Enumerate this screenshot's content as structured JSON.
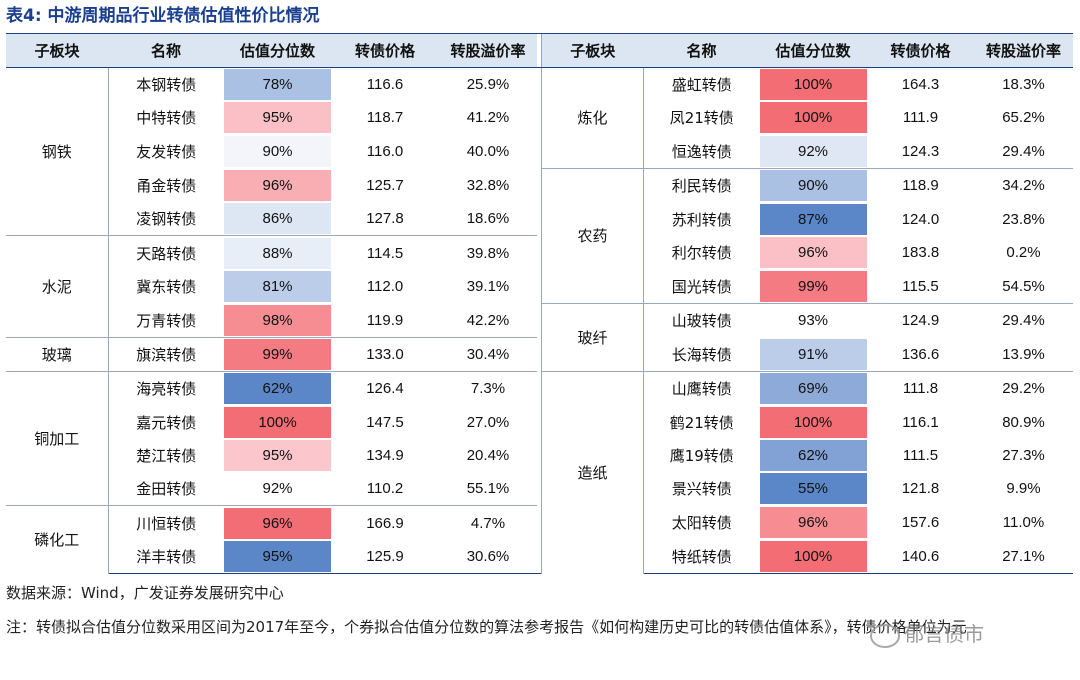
{
  "title": "表4: 中游周期品行业转债估值性价比情况",
  "headers": [
    "子板块",
    "名称",
    "估值分位数",
    "转债价格",
    "转股溢价率"
  ],
  "left": {
    "groups": [
      {
        "name": "钢铁",
        "rows": [
          {
            "name": "本钢转债",
            "pct": "78%",
            "price": "116.6",
            "premium": "25.9%",
            "color": "#abc1e4"
          },
          {
            "name": "中特转债",
            "pct": "95%",
            "price": "118.7",
            "premium": "41.2%",
            "color": "#fbc0c6"
          },
          {
            "name": "友发转债",
            "pct": "90%",
            "price": "116.0",
            "premium": "40.0%",
            "color": "#f3f5fb"
          },
          {
            "name": "甬金转债",
            "pct": "96%",
            "price": "125.7",
            "premium": "32.8%",
            "color": "#f9aeb4"
          },
          {
            "name": "凌钢转债",
            "pct": "86%",
            "price": "127.8",
            "premium": "18.6%",
            "color": "#dde6f3"
          }
        ]
      },
      {
        "name": "水泥",
        "rows": [
          {
            "name": "天路转债",
            "pct": "88%",
            "price": "114.5",
            "premium": "39.8%",
            "color": "#e8eef8"
          },
          {
            "name": "冀东转债",
            "pct": "81%",
            "price": "112.0",
            "premium": "39.1%",
            "color": "#bccde9"
          },
          {
            "name": "万青转债",
            "pct": "98%",
            "price": "119.9",
            "premium": "42.2%",
            "color": "#f68d93"
          }
        ]
      },
      {
        "name": "玻璃",
        "rows": [
          {
            "name": "旗滨转债",
            "pct": "99%",
            "price": "133.0",
            "premium": "30.4%",
            "color": "#f47b82"
          }
        ]
      },
      {
        "name": "铜加工",
        "rows": [
          {
            "name": "海亮转债",
            "pct": "62%",
            "price": "126.4",
            "premium": "7.3%",
            "color": "#5b87c9"
          },
          {
            "name": "嘉元转债",
            "pct": "100%",
            "price": "147.5",
            "premium": "27.0%",
            "color": "#f26d74"
          },
          {
            "name": "楚江转债",
            "pct": "95%",
            "price": "134.9",
            "premium": "20.4%",
            "color": "#fbc7cc"
          },
          {
            "name": "金田转债",
            "pct": "92%",
            "price": "110.2",
            "premium": "55.1%",
            "color": "#ffffff"
          }
        ]
      },
      {
        "name": "磷化工",
        "rows": [
          {
            "name": "川恒转债",
            "pct": "96%",
            "price": "166.9",
            "premium": "4.7%",
            "color": "#f26d74"
          },
          {
            "name": "洋丰转债",
            "pct": "95%",
            "price": "125.9",
            "premium": "30.6%",
            "color": "#5b87c9"
          }
        ]
      }
    ]
  },
  "right": {
    "groups": [
      {
        "name": "炼化",
        "rows": [
          {
            "name": "盛虹转债",
            "pct": "100%",
            "price": "164.3",
            "premium": "18.3%",
            "color": "#f26d74"
          },
          {
            "name": "凤21转债",
            "pct": "100%",
            "price": "111.9",
            "premium": "65.2%",
            "color": "#f26d74"
          },
          {
            "name": "恒逸转债",
            "pct": "92%",
            "price": "124.3",
            "premium": "29.4%",
            "color": "#dfe7f4"
          }
        ]
      },
      {
        "name": "农药",
        "rows": [
          {
            "name": "利民转债",
            "pct": "90%",
            "price": "118.9",
            "premium": "34.2%",
            "color": "#abc1e4"
          },
          {
            "name": "苏利转债",
            "pct": "87%",
            "price": "124.0",
            "premium": "23.8%",
            "color": "#5b87c9"
          },
          {
            "name": "利尔转债",
            "pct": "96%",
            "price": "183.8",
            "premium": "0.2%",
            "color": "#fbc0c6"
          },
          {
            "name": "国光转债",
            "pct": "99%",
            "price": "115.5",
            "premium": "54.5%",
            "color": "#f47b82"
          }
        ]
      },
      {
        "name": "玻纤",
        "rows": [
          {
            "name": "山玻转债",
            "pct": "93%",
            "price": "124.9",
            "premium": "29.4%",
            "color": "#ffffff"
          },
          {
            "name": "长海转债",
            "pct": "91%",
            "price": "136.6",
            "premium": "13.9%",
            "color": "#bccde9"
          }
        ]
      },
      {
        "name": "造纸",
        "rows": [
          {
            "name": "山鹰转债",
            "pct": "69%",
            "price": "111.8",
            "premium": "29.2%",
            "color": "#8eaad9"
          },
          {
            "name": "鹤21转债",
            "pct": "100%",
            "price": "116.1",
            "premium": "80.9%",
            "color": "#f26d74"
          },
          {
            "name": "鹰19转债",
            "pct": "62%",
            "price": "111.5",
            "premium": "27.3%",
            "color": "#82a2d6"
          },
          {
            "name": "景兴转债",
            "pct": "55%",
            "price": "121.8",
            "premium": "9.9%",
            "color": "#5b87c9"
          },
          {
            "name": "太阳转债",
            "pct": "96%",
            "price": "157.6",
            "premium": "11.0%",
            "color": "#f68d93"
          },
          {
            "name": "特纸转债",
            "pct": "100%",
            "price": "140.6",
            "premium": "27.1%",
            "color": "#f26d74"
          }
        ]
      }
    ]
  },
  "source": "数据来源：Wind，广发证券发展研究中心",
  "note": "注：转债拟合估值分位数采用区间为2017年至今，个券拟合估值分位数的算法参考报告《如何构建历史可比的转债估值体系》，转债价格单位为元",
  "watermark": "郁言债市"
}
